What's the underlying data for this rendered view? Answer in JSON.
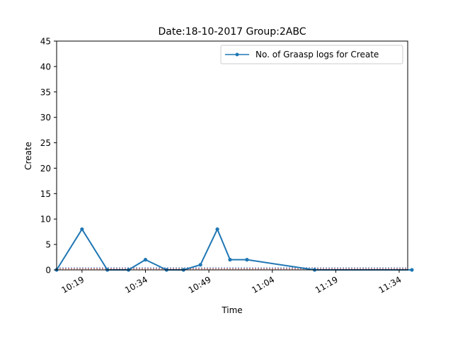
{
  "chart_data": {
    "type": "line",
    "title": "Date:18-10-2017  Group:2ABC",
    "xlabel": "Time",
    "ylabel": "Create",
    "ylim": [
      0,
      45
    ],
    "yticks": [
      "0",
      "5",
      "10",
      "15",
      "20",
      "25",
      "30",
      "35",
      "40",
      "45"
    ],
    "xlim_minutes": [
      "10:13",
      "10:37"
    ],
    "xticks": [
      "10:19",
      "10:34",
      "10:49",
      "11:04",
      "11:19",
      "11:34"
    ],
    "grid": false,
    "legend_position": "top-right",
    "series": [
      {
        "name": "No. of Graasp logs for Create",
        "color": "#1f77b4",
        "x": [
          "10:13",
          "10:19",
          "10:25",
          "10:30",
          "10:34",
          "10:39",
          "10:43",
          "10:47",
          "10:51",
          "10:54",
          "10:58",
          "11:14",
          "11:37"
        ],
        "values": [
          0,
          8,
          0,
          0,
          2,
          0,
          0,
          1,
          8,
          2,
          2,
          0,
          0
        ]
      }
    ],
    "reference_lines": [
      {
        "value": 0.42,
        "color": "#1f3a93",
        "style": "dashed"
      },
      {
        "value": 0.18,
        "color": "#c0392b",
        "style": "dashed"
      }
    ]
  }
}
